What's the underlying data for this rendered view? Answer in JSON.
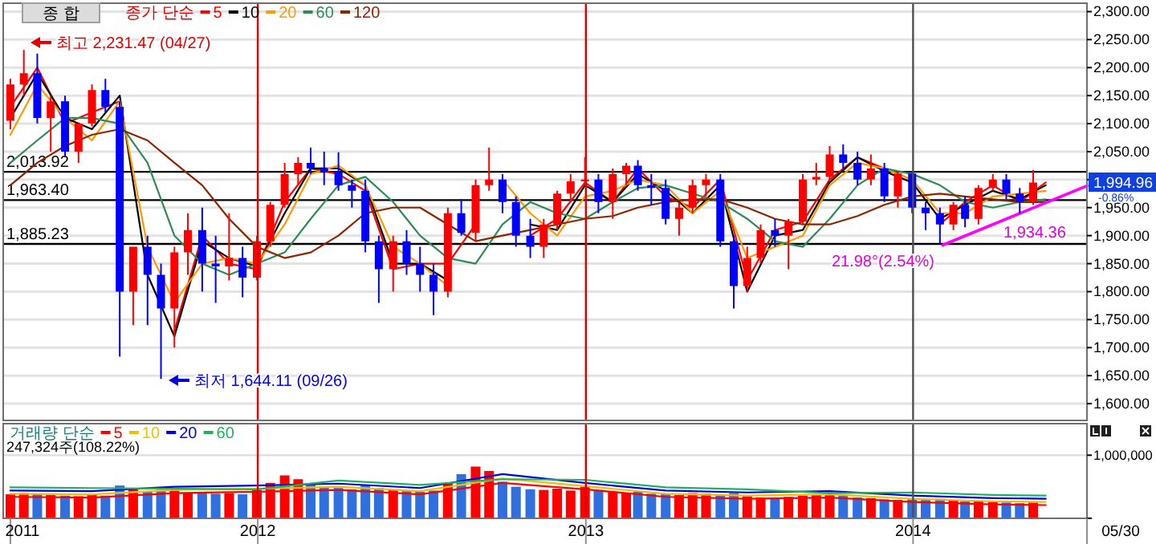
{
  "chart_data": [
    {
      "type": "candlestick",
      "title": "종 합",
      "legend_title": "종가 단순",
      "legend": "top left",
      "grid": "y",
      "tick_labels": "y",
      "xlim": [
        "2011-03-24",
        "2014-07-15"
      ],
      "ylim": [
        1570,
        2315
      ],
      "yticks": [
        {
          "value": 1600,
          "label": "1,600.00"
        },
        {
          "value": 1650,
          "label": "1,650.00"
        },
        {
          "value": 1700,
          "label": "1,700.00"
        },
        {
          "value": 1750,
          "label": "1,750.00"
        },
        {
          "value": 1800,
          "label": "1,800.00"
        },
        {
          "value": 1850,
          "label": "1,850.00"
        },
        {
          "value": 1900,
          "label": "1,900.00"
        },
        {
          "value": 1950,
          "label": "1,950.00"
        },
        {
          "value": 2000,
          "label": null
        },
        {
          "value": 2050,
          "label": "2,050.00"
        },
        {
          "value": 2100,
          "label": "2,100.00"
        },
        {
          "value": 2150,
          "label": "2,150.00"
        },
        {
          "value": 2200,
          "label": "2,200.00"
        },
        {
          "value": 2250,
          "label": "2,250.00"
        },
        {
          "value": 2300,
          "label": "2,300.00"
        }
      ],
      "x": [
        "2011-04-01",
        "2011-04-16",
        "2011-05-01",
        "2011-05-16",
        "2011-06-01",
        "2011-06-16",
        "2011-07-01",
        "2011-07-16",
        "2011-08-01",
        "2011-08-16",
        "2011-09-01",
        "2011-09-16",
        "2011-10-01",
        "2011-10-16",
        "2011-11-01",
        "2011-11-16",
        "2011-12-01",
        "2011-12-16",
        "2012-01-01",
        "2012-01-16",
        "2012-02-01",
        "2012-02-16",
        "2012-03-01",
        "2012-03-16",
        "2012-04-01",
        "2012-04-16",
        "2012-05-01",
        "2012-05-16",
        "2012-06-01",
        "2012-06-16",
        "2012-07-01",
        "2012-07-16",
        "2012-08-01",
        "2012-08-16",
        "2012-09-01",
        "2012-09-16",
        "2012-10-01",
        "2012-10-16",
        "2012-11-01",
        "2012-11-16",
        "2012-12-01",
        "2012-12-16",
        "2013-01-01",
        "2013-01-16",
        "2013-02-01",
        "2013-02-16",
        "2013-03-01",
        "2013-03-16",
        "2013-04-01",
        "2013-04-16",
        "2013-05-01",
        "2013-05-16",
        "2013-06-01",
        "2013-06-16",
        "2013-07-01",
        "2013-07-16",
        "2013-08-01",
        "2013-08-16",
        "2013-09-01",
        "2013-09-16",
        "2013-10-01",
        "2013-10-16",
        "2013-11-01",
        "2013-11-16",
        "2013-12-01",
        "2013-12-16",
        "2014-01-01",
        "2014-01-16",
        "2014-02-01",
        "2014-02-16",
        "2014-03-01",
        "2014-03-16",
        "2014-04-01",
        "2014-04-16",
        "2014-05-01",
        "2014-05-16"
      ],
      "ohlc": [
        [
          2105,
          2180,
          2090,
          2170
        ],
        [
          2170,
          2231.47,
          2150,
          2190
        ],
        [
          2190,
          2225,
          2100,
          2110
        ],
        [
          2110,
          2150,
          2050,
          2140
        ],
        [
          2140,
          2150,
          2040,
          2050
        ],
        [
          2050,
          2100,
          2030,
          2100
        ],
        [
          2100,
          2170,
          2095,
          2160
        ],
        [
          2160,
          2180,
          2120,
          2130
        ],
        [
          2130,
          2140,
          1684,
          1800
        ],
        [
          1800,
          1880,
          1740,
          1880
        ],
        [
          1880,
          1900,
          1740,
          1830
        ],
        [
          1830,
          1850,
          1644.11,
          1770
        ],
        [
          1770,
          1880,
          1700,
          1870
        ],
        [
          1870,
          1940,
          1830,
          1910
        ],
        [
          1910,
          1950,
          1800,
          1850
        ],
        [
          1850,
          1900,
          1780,
          1845
        ],
        [
          1845,
          1940,
          1820,
          1860
        ],
        [
          1860,
          1880,
          1790,
          1825
        ],
        [
          1825,
          1900,
          1820,
          1890
        ],
        [
          1890,
          1960,
          1880,
          1955
        ],
        [
          1955,
          2030,
          1950,
          2010
        ],
        [
          2010,
          2040,
          1990,
          2030
        ],
        [
          2030,
          2057,
          2010,
          2020
        ],
        [
          2020,
          2050,
          1990,
          2014
        ],
        [
          2014,
          2049,
          1980,
          1990
        ],
        [
          1990,
          2000,
          1950,
          1980
        ],
        [
          1980,
          2000,
          1870,
          1890
        ],
        [
          1890,
          1900,
          1780,
          1840
        ],
        [
          1840,
          1900,
          1800,
          1890
        ],
        [
          1890,
          1910,
          1830,
          1850
        ],
        [
          1850,
          1880,
          1800,
          1830
        ],
        [
          1830,
          1850,
          1758,
          1800
        ],
        [
          1800,
          1950,
          1790,
          1940
        ],
        [
          1940,
          1965,
          1900,
          1905
        ],
        [
          1905,
          2000,
          1890,
          1990
        ],
        [
          1990,
          2057,
          1980,
          2000
        ],
        [
          2000,
          2010,
          1940,
          1960
        ],
        [
          1960,
          1970,
          1880,
          1900
        ],
        [
          1900,
          1930,
          1860,
          1880
        ],
        [
          1880,
          1930,
          1860,
          1920
        ],
        [
          1920,
          1980,
          1910,
          1975
        ],
        [
          1975,
          2010,
          1960,
          1997
        ],
        [
          1997,
          2040,
          1990,
          2000
        ],
        [
          2000,
          2010,
          1940,
          1960
        ],
        [
          1960,
          2020,
          1930,
          2010
        ],
        [
          2010,
          2030,
          1990,
          2025
        ],
        [
          2025,
          2035,
          1980,
          1990
        ],
        [
          1990,
          2010,
          1955,
          1985
        ],
        [
          1985,
          2000,
          1920,
          1930
        ],
        [
          1930,
          1960,
          1900,
          1950
        ],
        [
          1950,
          2000,
          1940,
          1990
        ],
        [
          1990,
          2010,
          1970,
          2000
        ],
        [
          2000,
          2010,
          1880,
          1890
        ],
        [
          1890,
          1900,
          1770,
          1810
        ],
        [
          1810,
          1880,
          1800,
          1860
        ],
        [
          1860,
          1920,
          1850,
          1910
        ],
        [
          1910,
          1930,
          1880,
          1900
        ],
        [
          1900,
          1930,
          1840,
          1925
        ],
        [
          1925,
          2010,
          1920,
          2000
        ],
        [
          2000,
          2030,
          1990,
          2005
        ],
        [
          2005,
          2060,
          2000,
          2045
        ],
        [
          2045,
          2063,
          2020,
          2030
        ],
        [
          2030,
          2050,
          1990,
          2000
        ],
        [
          2000,
          2045,
          1990,
          2020
        ],
        [
          2020,
          2030,
          1960,
          1970
        ],
        [
          1970,
          2013,
          1950,
          2011
        ],
        [
          2011,
          2013,
          1940,
          1950
        ],
        [
          1950,
          1960,
          1910,
          1940
        ],
        [
          1940,
          1950,
          1885,
          1920
        ],
        [
          1920,
          1960,
          1910,
          1955
        ],
        [
          1955,
          1970,
          1915,
          1930
        ],
        [
          1930,
          1990,
          1920,
          1985
        ],
        [
          1985,
          2010,
          1980,
          2000
        ],
        [
          2000,
          2010,
          1965,
          1975
        ],
        [
          1975,
          1985,
          1940,
          1960
        ],
        [
          1960,
          2017,
          1955,
          1994.96
        ]
      ],
      "colors": [
        "#ff0000",
        "#ff0000",
        "#0000ff",
        "#ff0000",
        "#0000ff",
        "#ff0000",
        "#ff0000",
        "#0000ff",
        "#0000ff",
        "#ff0000",
        "#0000ff",
        "#0000ff",
        "#ff0000",
        "#ff0000",
        "#0000ff",
        "#0000ff",
        "#ff0000",
        "#0000ff",
        "#ff0000",
        "#ff0000",
        "#ff0000",
        "#ff0000",
        "#0000ff",
        "#0000ff",
        "#0000ff",
        "#0000ff",
        "#0000ff",
        "#0000ff",
        "#ff0000",
        "#0000ff",
        "#0000ff",
        "#0000ff",
        "#ff0000",
        "#0000ff",
        "#ff0000",
        "#ff0000",
        "#0000ff",
        "#0000ff",
        "#0000ff",
        "#ff0000",
        "#ff0000",
        "#ff0000",
        "#ff0000",
        "#0000ff",
        "#ff0000",
        "#ff0000",
        "#0000ff",
        "#0000ff",
        "#0000ff",
        "#ff0000",
        "#ff0000",
        "#ff0000",
        "#0000ff",
        "#0000ff",
        "#ff0000",
        "#ff0000",
        "#0000ff",
        "#ff0000",
        "#ff0000",
        "#ff0000",
        "#ff0000",
        "#0000ff",
        "#0000ff",
        "#ff0000",
        "#0000ff",
        "#ff0000",
        "#0000ff",
        "#0000ff",
        "#0000ff",
        "#ff0000",
        "#0000ff",
        "#ff0000",
        "#ff0000",
        "#0000ff",
        "#0000ff",
        "#ff0000"
      ],
      "series": [
        {
          "name": "5",
          "type": "line",
          "color": "#ff0000",
          "x": [
            "2011-04-01",
            "2011-05-01",
            "2011-06-01",
            "2011-07-01",
            "2011-08-01",
            "2011-09-01",
            "2011-10-01",
            "2011-11-01",
            "2011-12-01",
            "2012-01-01",
            "2012-02-01",
            "2012-03-01",
            "2012-04-01",
            "2012-05-01",
            "2012-06-01",
            "2012-07-01",
            "2012-08-01",
            "2012-09-01",
            "2012-10-01",
            "2012-11-01",
            "2012-12-01",
            "2013-01-01",
            "2013-02-01",
            "2013-03-01",
            "2013-04-01",
            "2013-05-01",
            "2013-06-01",
            "2013-07-01",
            "2013-08-01",
            "2013-09-01",
            "2013-10-01",
            "2013-11-01",
            "2013-12-01",
            "2014-01-01",
            "2014-02-01",
            "2014-03-01",
            "2014-04-01",
            "2014-05-01",
            "2014-05-30"
          ],
          "values": [
            2130,
            2200,
            2100,
            2120,
            2140,
            null,
            1730,
            1900,
            1850,
            1840,
            1960,
            2020,
            2010,
            1980,
            1840,
            1850,
            1850,
            1920,
            null,
            1900,
            1930,
            1995,
            1960,
            2020,
            1970,
            1950,
            2000,
            1820,
            1910,
            1925,
            2000,
            2040,
            2020,
            null,
            1920,
            1960,
            1990,
            1960,
            1995
          ]
        },
        {
          "name": "10",
          "type": "line",
          "color": "#000000",
          "x": [
            "2011-04-01",
            "2011-05-01",
            "2011-06-01",
            "2011-07-01",
            "2011-08-01",
            "2011-09-01",
            "2011-10-01",
            "2011-11-01",
            "2011-12-01",
            "2012-01-01",
            "2012-02-01",
            "2012-03-01",
            "2012-04-01",
            "2012-05-01",
            "2012-06-01",
            "2012-07-01",
            "2012-08-01",
            "2012-09-01",
            "2012-10-01",
            "2012-11-01",
            "2012-12-01",
            "2013-01-01",
            "2013-02-01",
            "2013-03-01",
            "2013-04-01",
            "2013-05-01",
            "2013-06-01",
            "2013-07-01",
            "2013-08-01",
            "2013-09-01",
            "2013-10-01",
            "2013-11-01",
            "2013-12-01",
            "2014-01-01",
            "2014-02-01",
            "2014-03-01",
            "2014-04-01",
            "2014-05-01",
            "2014-05-30"
          ],
          "values": [
            2110,
            2190,
            2110,
            2090,
            2150,
            1830,
            1720,
            1890,
            1860,
            1845,
            1940,
            2020,
            2020,
            1990,
            1850,
            1850,
            1820,
            null,
            null,
            1920,
            1910,
            1990,
            1960,
            2010,
            1980,
            1940,
            1990,
            1800,
            1900,
            1910,
            1995,
            2040,
            2015,
            1995,
            1930,
            1955,
            1980,
            1965,
            1990
          ]
        },
        {
          "name": "20",
          "type": "line",
          "color": "#ff9900",
          "x": [
            "2011-04-01",
            "2011-05-01",
            "2011-06-01",
            "2011-07-01",
            "2011-08-01",
            "2011-09-01",
            "2011-10-01",
            "2011-11-01",
            "2011-12-01",
            "2012-01-01",
            "2012-02-01",
            "2012-03-01",
            "2012-04-01",
            "2012-05-01",
            "2012-06-01",
            "2012-07-01",
            "2012-08-01",
            "2012-09-01",
            "2012-10-01",
            "2012-11-01",
            "2012-12-01",
            "2013-01-01",
            "2013-02-01",
            "2013-03-01",
            "2013-04-01",
            "2013-05-01",
            "2013-06-01",
            "2013-07-01",
            "2013-08-01",
            "2013-09-01",
            "2013-10-01",
            "2013-11-01",
            "2013-12-01",
            "2014-01-01",
            "2014-02-01",
            "2014-03-01",
            "2014-04-01",
            "2014-05-01",
            "2014-05-30"
          ],
          "values": [
            2080,
            2170,
            2110,
            2070,
            2140,
            1880,
            1780,
            1850,
            1860,
            1850,
            1920,
            2010,
            2025,
            1990,
            1880,
            1850,
            1810,
            null,
            2000,
            1940,
            1900,
            1970,
            1980,
            2000,
            1990,
            1940,
            1980,
            1860,
            1880,
            1900,
            1990,
            2030,
            2020,
            2000,
            1940,
            1940,
            1970,
            1975,
            1980
          ]
        },
        {
          "name": "60",
          "type": "line",
          "color": "#2e8b57",
          "x": [
            "2011-04-01",
            "2011-05-01",
            "2011-06-01",
            "2011-07-01",
            "2011-08-01",
            "2011-09-01",
            "2011-10-01",
            "2011-11-01",
            "2011-12-01",
            "2012-01-01",
            "2012-02-01",
            "2012-03-01",
            "2012-04-01",
            "2012-05-01",
            "2012-06-01",
            "2012-07-01",
            "2012-08-01",
            "2012-09-01",
            "2012-10-01",
            "2012-11-01",
            "2012-12-01",
            "2013-01-01",
            "2013-02-01",
            "2013-03-01",
            "2013-04-01",
            "2013-05-01",
            "2013-06-01",
            "2013-07-01",
            "2013-08-01",
            "2013-09-01",
            "2013-10-01",
            "2013-11-01",
            "2013-12-01",
            "2014-01-01",
            "2014-02-01",
            "2014-03-01",
            "2014-04-01",
            "2014-05-01",
            "2014-05-30"
          ],
          "values": [
            2030,
            2070,
            2110,
            2110,
            2100,
            2030,
            1900,
            1850,
            1830,
            1850,
            1870,
            1930,
            1990,
            2005,
            1960,
            1900,
            1860,
            1850,
            1920,
            1960,
            1940,
            1930,
            1960,
            1985,
            1990,
            1975,
            1960,
            1930,
            1890,
            1880,
            1930,
            1990,
            2020,
            2010,
            1990,
            1960,
            1950,
            1960,
            1965
          ]
        },
        {
          "name": "120",
          "type": "line",
          "color": "#8b2500",
          "x": [
            "2011-04-01",
            "2011-05-01",
            "2011-06-01",
            "2011-07-01",
            "2011-08-01",
            "2011-09-01",
            "2011-10-01",
            "2011-11-01",
            "2011-12-01",
            "2012-01-01",
            "2012-02-01",
            "2012-03-01",
            "2012-04-01",
            "2012-05-01",
            "2012-06-01",
            "2012-07-01",
            "2012-08-01",
            "2012-09-01",
            "2012-10-01",
            "2012-11-01",
            "2012-12-01",
            "2013-01-01",
            "2013-02-01",
            "2013-03-01",
            "2013-04-01",
            "2013-05-01",
            "2013-06-01",
            "2013-07-01",
            "2013-08-01",
            "2013-09-01",
            "2013-10-01",
            "2013-11-01",
            "2013-12-01",
            "2014-01-01",
            "2014-02-01",
            "2014-03-01",
            "2014-04-01",
            "2014-05-01",
            "2014-05-30"
          ],
          "values": [
            1990,
            2030,
            2060,
            2080,
            2090,
            2070,
            2030,
            1990,
            1930,
            1880,
            1860,
            1870,
            1900,
            1940,
            1950,
            1950,
            1920,
            1890,
            1900,
            1910,
            1920,
            1930,
            1935,
            1950,
            1960,
            1965,
            1965,
            1950,
            1930,
            1920,
            1920,
            1935,
            1955,
            1970,
            1975,
            1970,
            1965,
            1960,
            1960
          ]
        },
        {
          "type": "line",
          "color": "#ff00ff",
          "x": [
            "2014-02-04",
            "2014-07-15"
          ],
          "values": [
            1883,
            1989
          ]
        }
      ],
      "ref_lines": [
        {
          "axis": "y",
          "value": 2013.92,
          "label": "2,013.92",
          "color": "#000000"
        },
        {
          "axis": "y",
          "value": 1963.4,
          "label": "1,963.40",
          "color": "#000000"
        },
        {
          "axis": "y",
          "value": 1885.23,
          "label": "1,885.23",
          "color": "#000000"
        },
        {
          "axis": "x",
          "value": "2012-01-02",
          "color": "#e00000"
        },
        {
          "axis": "x",
          "value": "2013-01-02",
          "color": "#e00000"
        },
        {
          "axis": "x",
          "value": "2014-01-02",
          "color": "#505050"
        }
      ],
      "annotations": [
        "최고 2,231.47 (04/27)",
        "최저 1,644.11 (09/26)",
        "21.98°(2.54%)",
        "1,934.36",
        "1,994.96",
        "-0.86%"
      ]
    },
    {
      "type": "bar",
      "legend_title": "거래량 단순",
      "legend": "top left",
      "tick_labels": "xy",
      "xlim": [
        "2011-03-24",
        "2014-07-15"
      ],
      "ylim": [
        0,
        1500000
      ],
      "xticks": [
        {
          "value": "2011-04-01",
          "label": "2011"
        },
        {
          "value": "2012-01-02",
          "label": "2012"
        },
        {
          "value": "2013-01-02",
          "label": "2013"
        },
        {
          "value": "2014-01-02",
          "label": "2014"
        }
      ],
      "yticks": [
        {
          "value": 0,
          "label": null
        },
        {
          "value": 1000000,
          "label": "1,000,000"
        }
      ],
      "x": [
        "2011-04-01",
        "2011-04-16",
        "2011-05-01",
        "2011-05-16",
        "2011-06-01",
        "2011-06-16",
        "2011-07-01",
        "2011-07-16",
        "2011-08-01",
        "2011-08-16",
        "2011-09-01",
        "2011-09-16",
        "2011-10-01",
        "2011-10-16",
        "2011-11-01",
        "2011-11-16",
        "2011-12-01",
        "2011-12-16",
        "2012-01-01",
        "2012-01-16",
        "2012-02-01",
        "2012-02-16",
        "2012-03-01",
        "2012-03-16",
        "2012-04-01",
        "2012-04-16",
        "2012-05-01",
        "2012-05-16",
        "2012-06-01",
        "2012-06-16",
        "2012-07-01",
        "2012-07-16",
        "2012-08-01",
        "2012-08-16",
        "2012-09-01",
        "2012-09-16",
        "2012-10-01",
        "2012-10-16",
        "2012-11-01",
        "2012-11-16",
        "2012-12-01",
        "2012-12-16",
        "2013-01-01",
        "2013-01-16",
        "2013-02-01",
        "2013-02-16",
        "2013-03-01",
        "2013-03-16",
        "2013-04-01",
        "2013-04-16",
        "2013-05-01",
        "2013-05-16",
        "2013-06-01",
        "2013-06-16",
        "2013-07-01",
        "2013-07-16",
        "2013-08-01",
        "2013-08-16",
        "2013-09-01",
        "2013-09-16",
        "2013-10-01",
        "2013-10-16",
        "2013-11-01",
        "2013-11-16",
        "2013-12-01",
        "2013-12-16",
        "2014-01-01",
        "2014-01-16",
        "2014-02-01",
        "2014-02-16",
        "2014-03-01",
        "2014-03-16",
        "2014-04-01",
        "2014-04-16",
        "2014-05-01",
        "2014-05-16"
      ],
      "values": [
        380000,
        400000,
        390000,
        370000,
        360000,
        350000,
        380000,
        360000,
        520000,
        480000,
        420000,
        450000,
        440000,
        400000,
        420000,
        390000,
        400000,
        380000,
        450000,
        560000,
        680000,
        620000,
        550000,
        500000,
        480000,
        460000,
        520000,
        480000,
        450000,
        430000,
        420000,
        440000,
        560000,
        700000,
        820000,
        750000,
        580000,
        500000,
        460000,
        450000,
        470000,
        440000,
        500000,
        450000,
        420000,
        400000,
        420000,
        390000,
        380000,
        370000,
        400000,
        390000,
        360000,
        400000,
        350000,
        330000,
        320000,
        340000,
        360000,
        380000,
        370000,
        360000,
        330000,
        320000,
        300000,
        290000,
        300000,
        290000,
        310000,
        280000,
        270000,
        280000,
        260000,
        250000,
        240000,
        250000
      ],
      "colors": [
        "#ff0000",
        "#ff0000",
        "#2f6fdf",
        "#ff0000",
        "#2f6fdf",
        "#ff0000",
        "#ff0000",
        "#2f6fdf",
        "#2f6fdf",
        "#ff0000",
        "#2f6fdf",
        "#2f6fdf",
        "#ff0000",
        "#ff0000",
        "#2f6fdf",
        "#2f6fdf",
        "#ff0000",
        "#2f6fdf",
        "#ff0000",
        "#ff0000",
        "#ff0000",
        "#ff0000",
        "#2f6fdf",
        "#2f6fdf",
        "#2f6fdf",
        "#2f6fdf",
        "#2f6fdf",
        "#2f6fdf",
        "#ff0000",
        "#2f6fdf",
        "#2f6fdf",
        "#2f6fdf",
        "#ff0000",
        "#2f6fdf",
        "#ff0000",
        "#ff0000",
        "#2f6fdf",
        "#2f6fdf",
        "#2f6fdf",
        "#ff0000",
        "#ff0000",
        "#ff0000",
        "#ff0000",
        "#2f6fdf",
        "#ff0000",
        "#ff0000",
        "#2f6fdf",
        "#2f6fdf",
        "#2f6fdf",
        "#ff0000",
        "#ff0000",
        "#ff0000",
        "#2f6fdf",
        "#2f6fdf",
        "#ff0000",
        "#ff0000",
        "#2f6fdf",
        "#ff0000",
        "#ff0000",
        "#ff0000",
        "#ff0000",
        "#2f6fdf",
        "#2f6fdf",
        "#ff0000",
        "#2f6fdf",
        "#ff0000",
        "#2f6fdf",
        "#2f6fdf",
        "#2f6fdf",
        "#ff0000",
        "#2f6fdf",
        "#ff0000",
        "#ff0000",
        "#2f6fdf",
        "#2f6fdf",
        "#ff0000"
      ],
      "series": [
        {
          "name": "5",
          "type": "line",
          "color": "#ff0000",
          "x": [
            "2011-04-01",
            "2011-07-01",
            "2011-10-01",
            "2012-01-01",
            "2012-04-01",
            "2012-07-01",
            "2012-10-01",
            "2013-01-01",
            "2013-04-01",
            "2013-07-01",
            "2013-10-01",
            "2014-01-01",
            "2014-04-01",
            "2014-05-30"
          ],
          "values": [
            340000,
            330000,
            400000,
            420000,
            450000,
            380000,
            560000,
            460000,
            340000,
            310000,
            330000,
            260000,
            220000,
            210000
          ]
        },
        {
          "name": "10",
          "type": "line",
          "color": "#f0c000",
          "x": [
            "2011-04-01",
            "2011-07-01",
            "2011-10-01",
            "2012-01-01",
            "2012-04-01",
            "2012-07-01",
            "2012-10-01",
            "2013-01-01",
            "2013-04-01",
            "2013-07-01",
            "2013-10-01",
            "2014-01-01",
            "2014-04-01",
            "2014-05-30"
          ],
          "values": [
            390000,
            380000,
            450000,
            470000,
            500000,
            430000,
            630000,
            510000,
            390000,
            360000,
            380000,
            310000,
            270000,
            260000
          ]
        },
        {
          "name": "20",
          "type": "line",
          "color": "#0000e0",
          "x": [
            "2011-04-01",
            "2011-07-01",
            "2011-10-01",
            "2012-01-01",
            "2012-04-01",
            "2012-07-01",
            "2012-10-01",
            "2013-01-01",
            "2013-04-01",
            "2013-07-01",
            "2013-10-01",
            "2014-01-01",
            "2014-04-01",
            "2014-05-30"
          ],
          "values": [
            440000,
            430000,
            500000,
            520000,
            550000,
            480000,
            700000,
            560000,
            440000,
            410000,
            430000,
            360000,
            320000,
            310000
          ]
        },
        {
          "name": "60",
          "type": "line",
          "color": "#20b060",
          "x": [
            "2011-04-01",
            "2011-07-01",
            "2011-10-01",
            "2012-01-01",
            "2012-04-01",
            "2012-07-01",
            "2012-10-01",
            "2013-01-01",
            "2013-04-01",
            "2013-07-01",
            "2013-10-01",
            "2014-01-01",
            "2014-04-01",
            "2014-05-30"
          ],
          "values": [
            490000,
            480000,
            470000,
            460000,
            600000,
            530000,
            620000,
            610000,
            490000,
            460000,
            400000,
            410000,
            370000,
            360000
          ]
        }
      ],
      "ref_lines": [
        {
          "axis": "y",
          "value": 1000000,
          "color": "#dddddd"
        },
        {
          "axis": "x",
          "value": "2012-01-02",
          "color": "#e00000"
        },
        {
          "axis": "x",
          "value": "2013-01-02",
          "color": "#e00000"
        },
        {
          "axis": "x",
          "value": "2014-01-02",
          "color": "#505050"
        }
      ],
      "annotations": [
        "247,324주(108.22%)",
        "05/30"
      ]
    }
  ]
}
